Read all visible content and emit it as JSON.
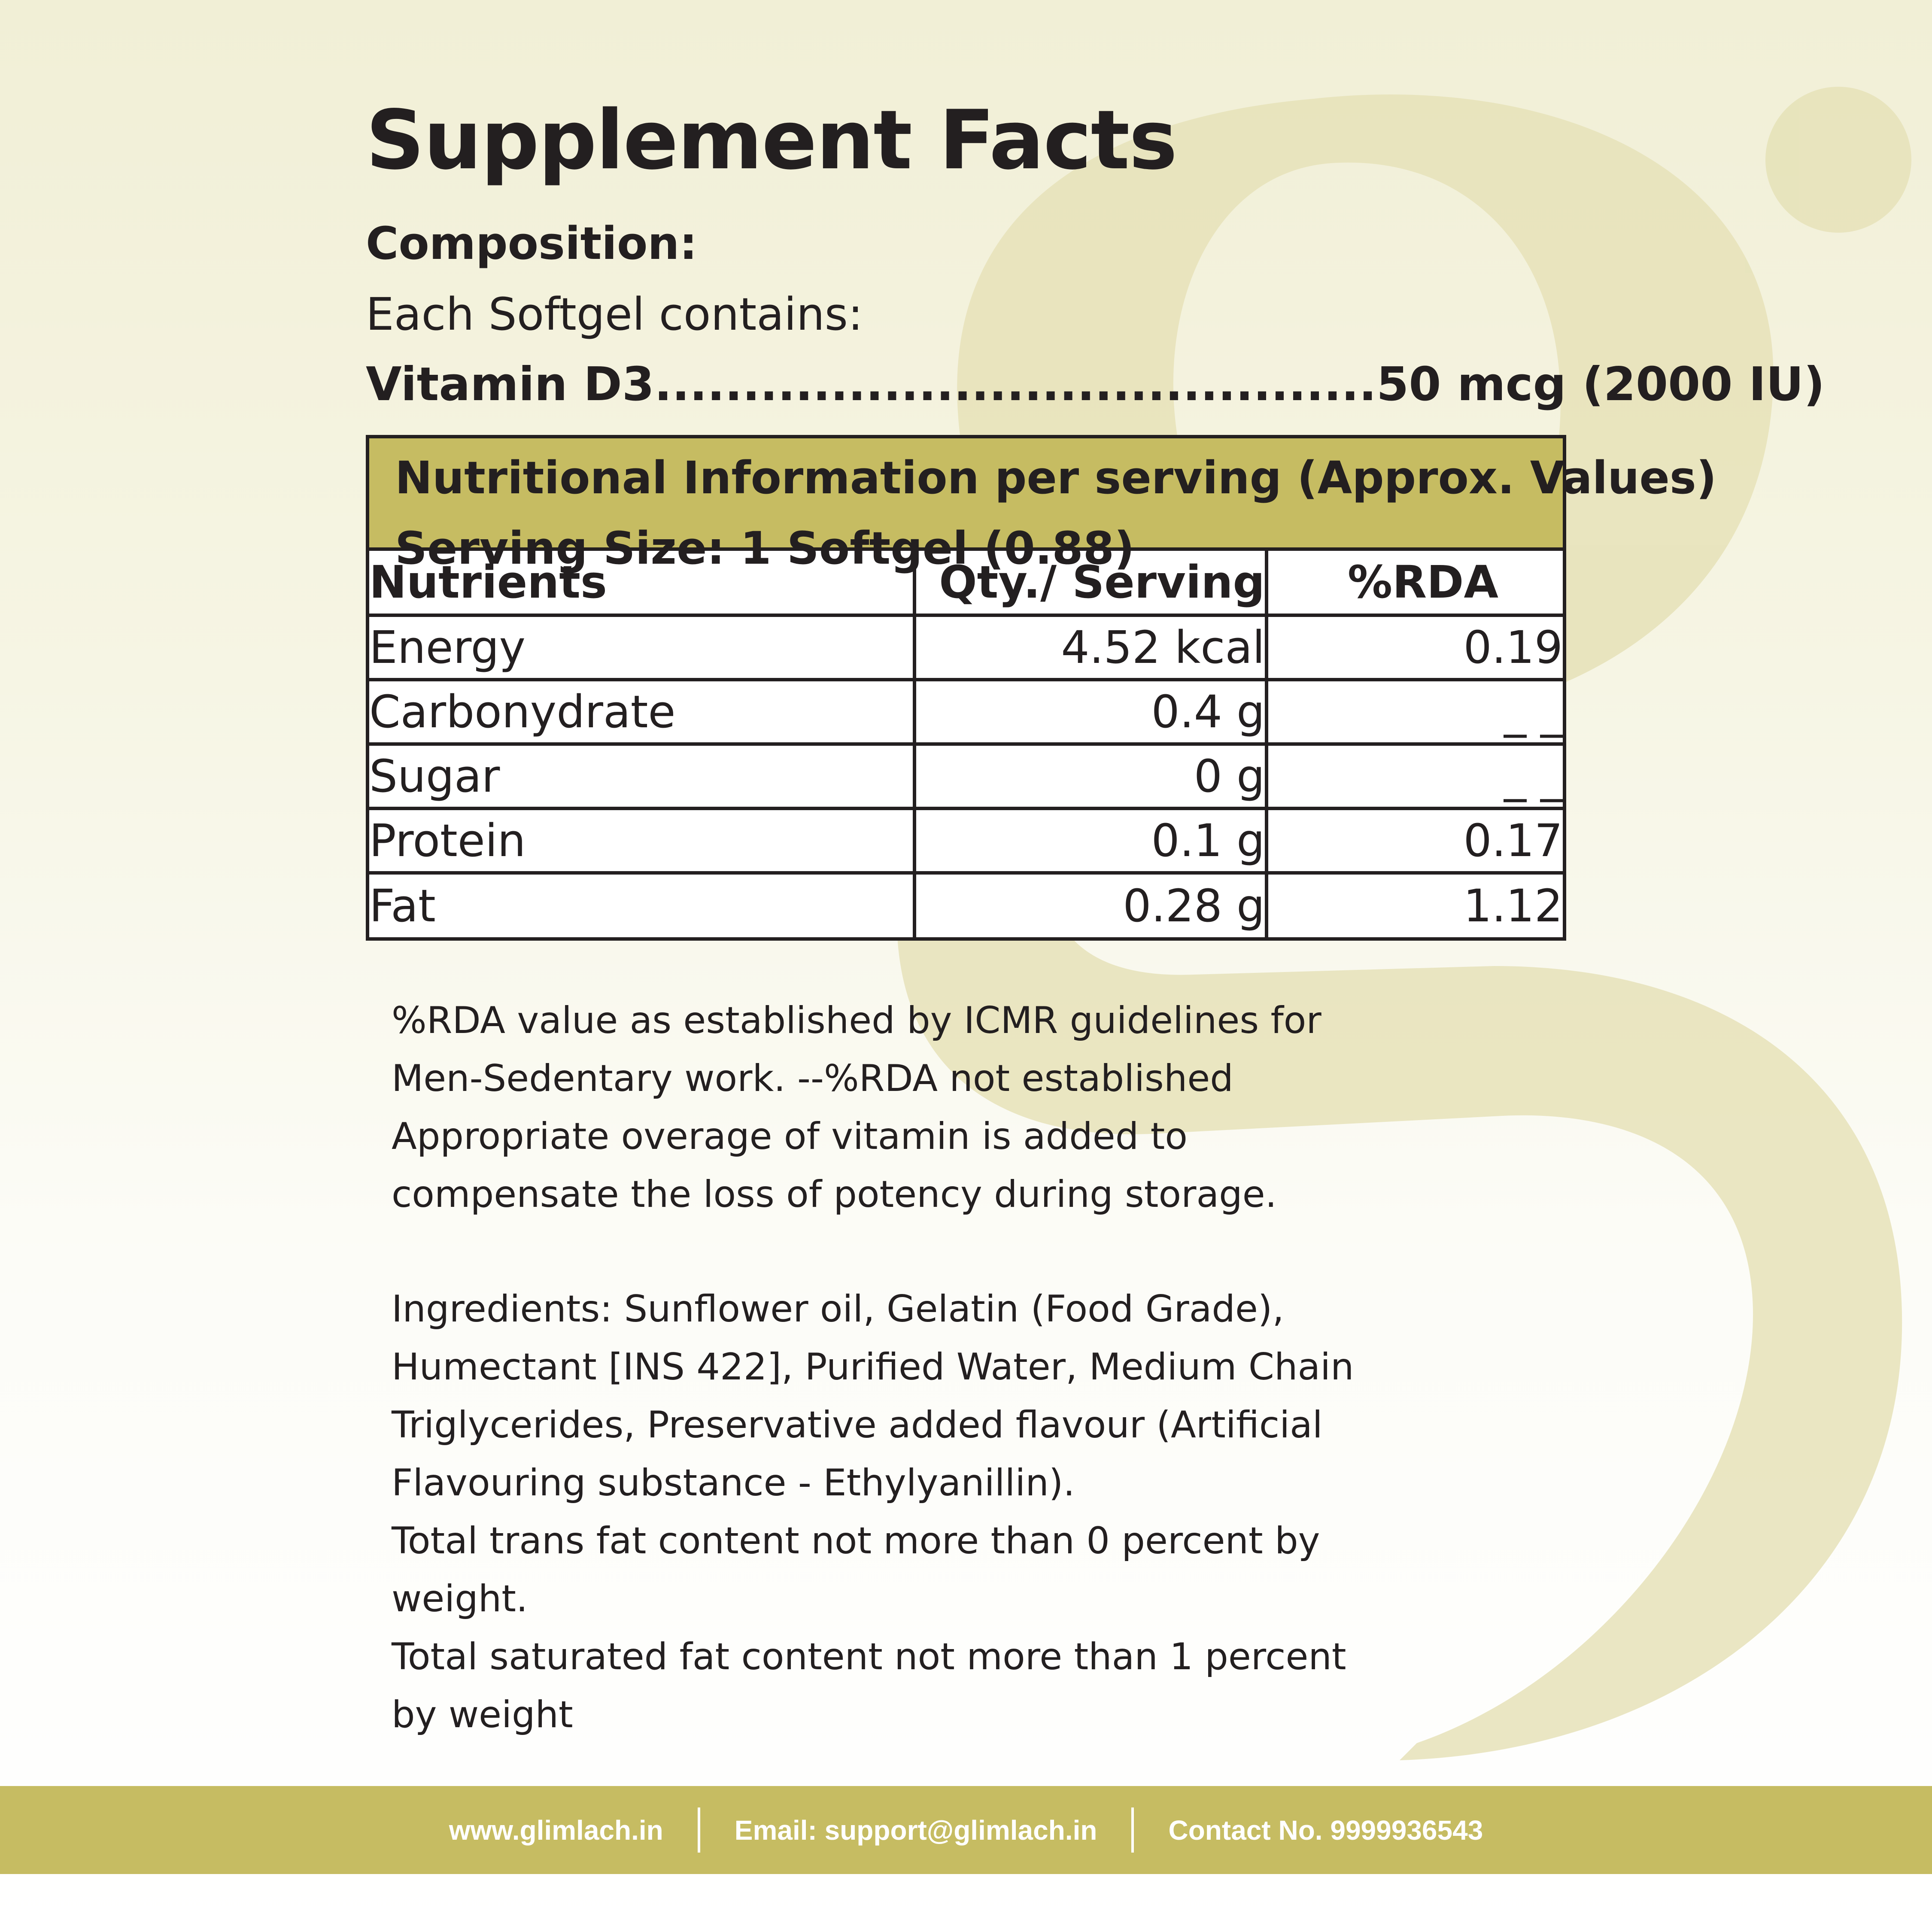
{
  "header": {
    "title": "Supplement Facts",
    "composition_label": "Composition:",
    "each_softgel": "Each Softgel contains:",
    "vitamin_name": "Vitamin D3",
    "vitamin_leader": ".........................................",
    "vitamin_amount": "50 mcg (2000 IU)"
  },
  "table": {
    "header_line1": "Nutritional Information per serving (Approx. Values)",
    "header_line2": "Serving Size: 1 Softgel (0.88)",
    "col_nutrients": "Nutrients",
    "col_qty": "Qty./ Serving",
    "col_rda": "%RDA",
    "rows": [
      {
        "nutrient": "Energy",
        "qty": "4.52 kcal",
        "rda": "0.19"
      },
      {
        "nutrient": "Carbonydrate",
        "qty": "0.4 g",
        "rda": "_ _"
      },
      {
        "nutrient": "Sugar",
        "qty": "0 g",
        "rda": "_ _"
      },
      {
        "nutrient": "Protein",
        "qty": "0.1 g",
        "rda": "0.17"
      },
      {
        "nutrient": "Fat",
        "qty": "0.28 g",
        "rda": "1.12"
      }
    ]
  },
  "notes": {
    "rda_lines": [
      "%RDA value as established by ICMR guidelines for",
      "Men-Sedentary work. --%RDA not established",
      "Appropriate overage of vitamin is added to",
      "compensate the loss of potency during storage."
    ],
    "ingredient_lines": [
      "Ingredients: Sunflower oil, Gelatin (Food Grade),",
      "Humectant [INS 422], Purified Water, Medium Chain",
      "Triglycerides, Preservative added flavour (Artificial",
      "Flavouring substance - Ethylyanillin).",
      "Total trans fat content not more than 0 percent by",
      "weight.",
      "Total saturated fat content not more than 1 percent",
      "by weight"
    ]
  },
  "footer": {
    "website": "www.glimlach.in",
    "email": "Email: support@glimlach.in",
    "contact": "Contact No. 9999936543"
  },
  "colors": {
    "accent": "#c6bc62",
    "text": "#231f20",
    "background_top": "#f1efd6",
    "background_bottom": "#ffffff",
    "watermark": "#e6e2b8"
  },
  "icons": [
    "brand-g-watermark-icon"
  ]
}
